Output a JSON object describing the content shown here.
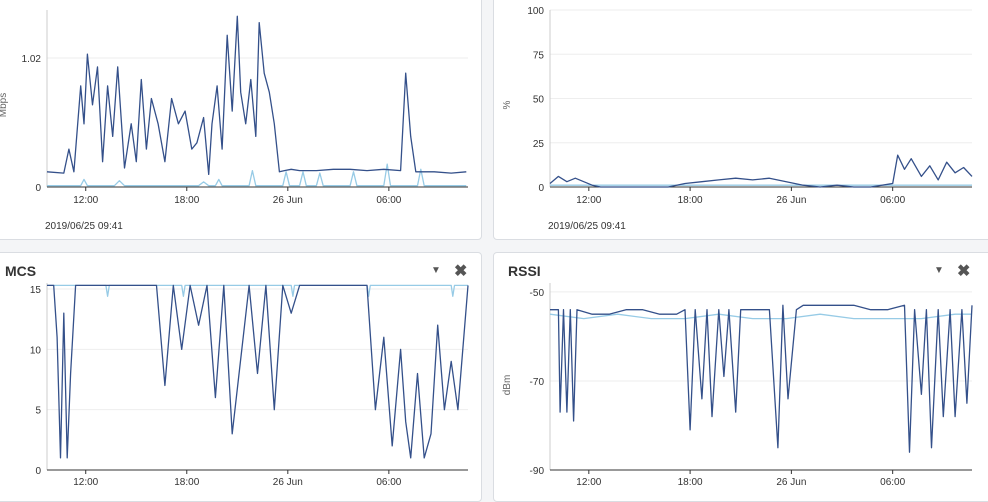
{
  "panels": {
    "throughput": {
      "timestamp": "2019/06/25 09:41"
    },
    "utilization": {
      "timestamp": "2019/06/25 09:41"
    },
    "mcs": {
      "title": "MCS",
      "menu_icon": "chevron-down-icon",
      "close_icon": "close-icon"
    },
    "rssi": {
      "title": "RSSI",
      "menu_icon": "chevron-down-icon",
      "close_icon": "close-icon"
    }
  },
  "colors": {
    "dark_series": "#34508a",
    "light_series": "#97cbe6",
    "grid": "#eeeeee",
    "axis": "#333333"
  },
  "chart_data": [
    {
      "type": "line",
      "ylabel": "Mbps",
      "ylim": [
        0,
        1.4
      ],
      "yticks": [
        {
          "v": 0,
          "label": "0"
        },
        {
          "v": 1.02,
          "label": "1.02"
        }
      ],
      "xlim": [
        0,
        25
      ],
      "xticks": [
        {
          "v": 2.3,
          "label": "12:00"
        },
        {
          "v": 8.3,
          "label": "18:00"
        },
        {
          "v": 14.3,
          "label": "26 Jun"
        },
        {
          "v": 20.3,
          "label": "06:00"
        }
      ],
      "series": [
        {
          "color": "#34508a",
          "x": [
            0,
            1,
            1.3,
            1.6,
            2.0,
            2.2,
            2.4,
            2.7,
            3.0,
            3.3,
            3.6,
            3.9,
            4.2,
            4.6,
            5.0,
            5.3,
            5.6,
            5.9,
            6.2,
            6.6,
            7.0,
            7.4,
            7.8,
            8.2,
            8.6,
            8.9,
            9.3,
            9.6,
            9.8,
            10.1,
            10.4,
            10.7,
            11.0,
            11.3,
            11.5,
            11.8,
            12.1,
            12.4,
            12.6,
            12.9,
            13.2,
            13.5,
            13.8,
            14.1,
            14.5,
            15,
            16,
            17,
            18,
            19,
            20,
            21,
            21.3,
            21.6,
            21.9,
            22.2,
            22.5,
            23,
            24,
            24.9
          ],
          "y": [
            0.12,
            0.11,
            0.3,
            0.12,
            0.8,
            0.5,
            1.05,
            0.65,
            0.95,
            0.2,
            0.8,
            0.4,
            0.95,
            0.15,
            0.5,
            0.2,
            0.85,
            0.3,
            0.7,
            0.5,
            0.2,
            0.7,
            0.5,
            0.6,
            0.3,
            0.35,
            0.55,
            0.1,
            0.5,
            0.8,
            0.3,
            1.2,
            0.6,
            1.35,
            0.75,
            0.5,
            0.85,
            0.4,
            1.3,
            0.9,
            0.75,
            0.5,
            0.12,
            0.13,
            0.14,
            0.13,
            0.13,
            0.14,
            0.14,
            0.13,
            0.14,
            0.13,
            0.9,
            0.4,
            0.12,
            0.12,
            0.12,
            0.12,
            0.11,
            0.12
          ]
        },
        {
          "color": "#97cbe6",
          "x": [
            0,
            2.0,
            2.2,
            2.4,
            4.0,
            4.3,
            4.6,
            9.0,
            9.3,
            9.6,
            10.0,
            10.2,
            10.4,
            12.0,
            12.2,
            12.4,
            14.0,
            14.2,
            14.4,
            15.0,
            15.2,
            15.4,
            16.0,
            16.2,
            16.4,
            18.0,
            18.2,
            18.4,
            20.0,
            20.2,
            20.4,
            22.0,
            22.2,
            22.4,
            24.9
          ],
          "y": [
            0.01,
            0.01,
            0.06,
            0.01,
            0.01,
            0.05,
            0.01,
            0.01,
            0.04,
            0.01,
            0.01,
            0.06,
            0.01,
            0.01,
            0.13,
            0.01,
            0.01,
            0.12,
            0.01,
            0.01,
            0.12,
            0.01,
            0.01,
            0.11,
            0.01,
            0.01,
            0.12,
            0.01,
            0.01,
            0.18,
            0.01,
            0.01,
            0.14,
            0.01,
            0.01
          ]
        }
      ]
    },
    {
      "type": "line",
      "ylabel": "%",
      "ylim": [
        0,
        100
      ],
      "yticks": [
        {
          "v": 0,
          "label": "0"
        },
        {
          "v": 25,
          "label": "25"
        },
        {
          "v": 50,
          "label": "50"
        },
        {
          "v": 75,
          "label": "75"
        },
        {
          "v": 100,
          "label": "100"
        }
      ],
      "xlim": [
        0,
        25
      ],
      "xticks": [
        {
          "v": 2.3,
          "label": "12:00"
        },
        {
          "v": 8.3,
          "label": "18:00"
        },
        {
          "v": 14.3,
          "label": "26 Jun"
        },
        {
          "v": 20.3,
          "label": "06:00"
        }
      ],
      "series": [
        {
          "color": "#34508a",
          "x": [
            0,
            0.5,
            1,
            1.5,
            2.5,
            3,
            6,
            7,
            8,
            9,
            10,
            11,
            12,
            13,
            14,
            15,
            16,
            17,
            18,
            19,
            20.3,
            20.6,
            21,
            21.4,
            22,
            22.5,
            23,
            23.5,
            24,
            24.5,
            25
          ],
          "y": [
            2,
            6,
            3,
            5,
            1,
            0,
            0,
            0,
            2,
            3,
            4,
            5,
            4,
            5,
            3,
            1,
            0,
            1,
            0,
            0,
            2,
            18,
            10,
            16,
            6,
            12,
            4,
            14,
            8,
            11,
            6
          ]
        },
        {
          "color": "#97cbe6",
          "x": [
            0,
            25
          ],
          "y": [
            1,
            1
          ]
        }
      ]
    },
    {
      "type": "line",
      "ylabel": "",
      "ylim": [
        0,
        15.5
      ],
      "yticks": [
        {
          "v": 0,
          "label": "0"
        },
        {
          "v": 5,
          "label": "5"
        },
        {
          "v": 10,
          "label": "10"
        },
        {
          "v": 15,
          "label": "15"
        }
      ],
      "xlim": [
        0,
        25
      ],
      "xticks": [
        {
          "v": 2.3,
          "label": "12:00"
        },
        {
          "v": 8.3,
          "label": "18:00"
        },
        {
          "v": 14.3,
          "label": "26 Jun"
        },
        {
          "v": 20.3,
          "label": "06:00"
        }
      ],
      "series": [
        {
          "color": "#34508a",
          "x": [
            0,
            0.4,
            0.6,
            0.8,
            1.0,
            1.2,
            1.4,
            1.7,
            2.0,
            2.5,
            6.5,
            7.0,
            7.5,
            8.0,
            8.5,
            9.0,
            9.5,
            10.0,
            10.5,
            11.0,
            12.0,
            12.5,
            13.0,
            13.5,
            14.0,
            14.5,
            15.0,
            19.0,
            19.5,
            20.0,
            20.5,
            21.0,
            21.3,
            21.6,
            22.0,
            22.4,
            22.8,
            23.2,
            23.6,
            24.0,
            24.4,
            25
          ],
          "y": [
            15.3,
            15.3,
            11,
            1,
            13,
            1,
            8,
            15.3,
            15.3,
            15.3,
            15.3,
            7,
            15.3,
            10,
            15.3,
            12,
            15.3,
            6,
            15.3,
            3,
            15.3,
            8,
            15.3,
            5,
            15.3,
            13,
            15.3,
            15.3,
            5,
            11,
            2,
            10,
            4,
            1,
            8,
            1,
            3,
            12,
            5,
            9,
            5,
            15.3
          ]
        },
        {
          "color": "#97cbe6",
          "x": [
            0,
            3.5,
            3.6,
            3.7,
            8.0,
            8.1,
            8.2,
            14.5,
            14.6,
            14.7,
            19.0,
            19.1,
            19.2,
            24.0,
            24.1,
            24.2,
            25
          ],
          "y": [
            15.3,
            15.3,
            14.4,
            15.3,
            15.3,
            14.4,
            15.3,
            15.3,
            14.4,
            15.3,
            15.3,
            14.4,
            15.3,
            15.3,
            14.4,
            15.3,
            15.3
          ]
        }
      ]
    },
    {
      "type": "line",
      "ylabel": "dBm",
      "ylim": [
        -90,
        -48
      ],
      "yticks": [
        {
          "v": -50,
          "label": "-50"
        },
        {
          "v": -70,
          "label": "-70"
        },
        {
          "v": -90,
          "label": "-90"
        }
      ],
      "xlim": [
        0,
        25
      ],
      "xticks": [
        {
          "v": 2.3,
          "label": "12:00"
        },
        {
          "v": 8.3,
          "label": "18:00"
        },
        {
          "v": 14.3,
          "label": "26 Jun"
        },
        {
          "v": 20.3,
          "label": "06:00"
        }
      ],
      "series": [
        {
          "color": "#34508a",
          "x": [
            0,
            0.5,
            0.6,
            0.8,
            1.0,
            1.2,
            1.4,
            1.6,
            2.5,
            3.5,
            4.5,
            5.5,
            6.5,
            7.5,
            8.0,
            8.3,
            8.6,
            9.0,
            9.3,
            9.6,
            10.0,
            10.3,
            10.6,
            11.0,
            11.3,
            12.0,
            13.0,
            13.5,
            13.8,
            14.1,
            14.6,
            15.0,
            16.0,
            17.0,
            18.0,
            19.0,
            20.0,
            21.0,
            21.3,
            21.6,
            22.0,
            22.3,
            22.6,
            23.0,
            23.3,
            23.7,
            24.0,
            24.4,
            24.7,
            25
          ],
          "y": [
            -54,
            -54,
            -77,
            -54,
            -77,
            -54,
            -79,
            -54,
            -55,
            -55,
            -54,
            -54,
            -55,
            -55,
            -54,
            -81,
            -54,
            -74,
            -54,
            -78,
            -54,
            -69,
            -54,
            -77,
            -54,
            -54,
            -54,
            -85,
            -53,
            -74,
            -54,
            -53,
            -53,
            -53,
            -53,
            -54,
            -54,
            -53,
            -86,
            -54,
            -73,
            -54,
            -85,
            -54,
            -78,
            -54,
            -78,
            -54,
            -75,
            -53
          ]
        },
        {
          "color": "#97cbe6",
          "x": [
            0,
            2,
            4,
            6,
            8,
            10,
            12,
            14,
            16,
            18,
            20,
            22,
            24,
            25
          ],
          "y": [
            -55,
            -56,
            -55,
            -56,
            -56,
            -55,
            -56,
            -56,
            -55,
            -56,
            -56,
            -56,
            -55,
            -55
          ]
        }
      ]
    }
  ]
}
